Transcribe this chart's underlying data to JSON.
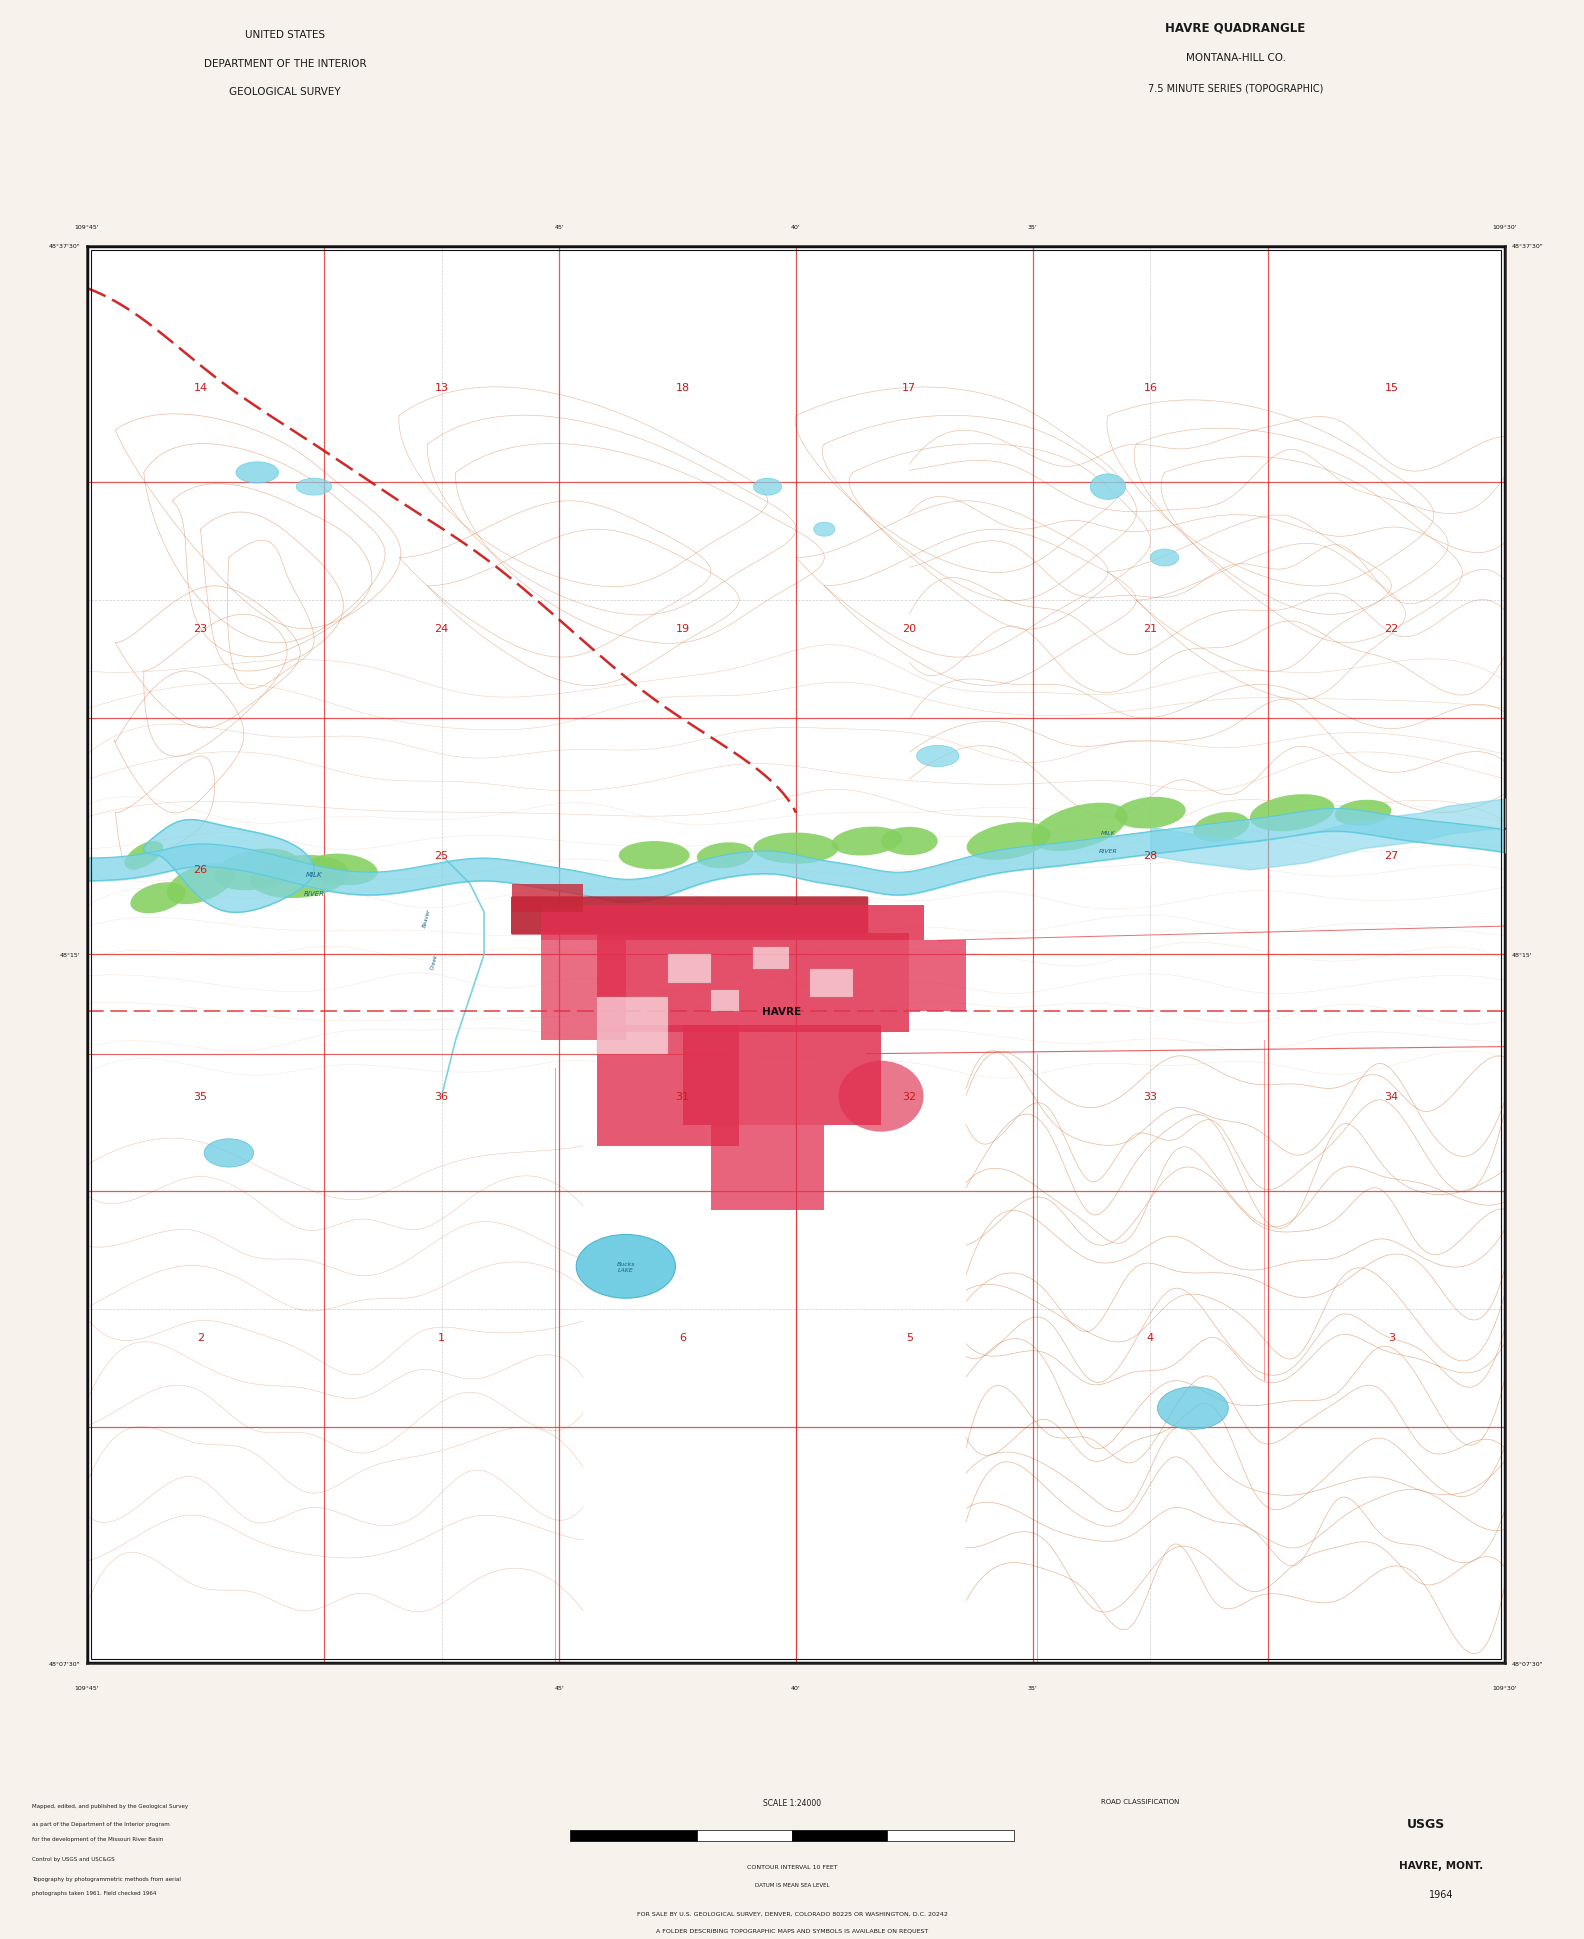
{
  "title_left_line1": "UNITED STATES",
  "title_left_line2": "DEPARTMENT OF THE INTERIOR",
  "title_left_line3": "GEOLOGICAL SURVEY",
  "title_right_line1": "HAVRE QUADRANGLE",
  "title_right_line2": "MONTANA-HILL CO.",
  "title_right_line3": "7.5 MINUTE SERIES (TOPOGRAPHIC)",
  "map_name": "HAVRE, MONT.",
  "year": "1964",
  "scale_text": "SCALE 1:24000",
  "bg_color": "#f7f3ec",
  "map_bg": "#faf6f0",
  "contour_color": "#d4895a",
  "contour_alpha": 0.55,
  "water_color": "#5ac8dc",
  "water_fill": "#7fd4e8",
  "veg_color": "#72c45a",
  "veg_fill": "#85d060",
  "urban_fill": "#e03050",
  "urban_alpha": 0.85,
  "rail_fill": "#c82838",
  "grid_red": "#dd2020",
  "grid_gray": "#888888",
  "text_black": "#1a1a1a",
  "section_color": "#cc1818",
  "border_color": "#222222",
  "diagonal_road_color": "#cc1010",
  "bottom_note1": "FOR SALE BY U.S. GEOLOGICAL SURVEY, DENVER, COLORADO 80225 OR WASHINGTON, D.C. 20242",
  "bottom_note2": "A FOLDER DESCRIBING TOPOGRAPHIC MAPS AND SYMBOLS IS AVAILABLE ON REQUEST",
  "contour_note": "CONTOUR INTERVAL 10 FEET",
  "datum_note": "DATUM IS MEAN SEA LEVEL",
  "road_class_title": "ROAD CLASSIFICATION"
}
